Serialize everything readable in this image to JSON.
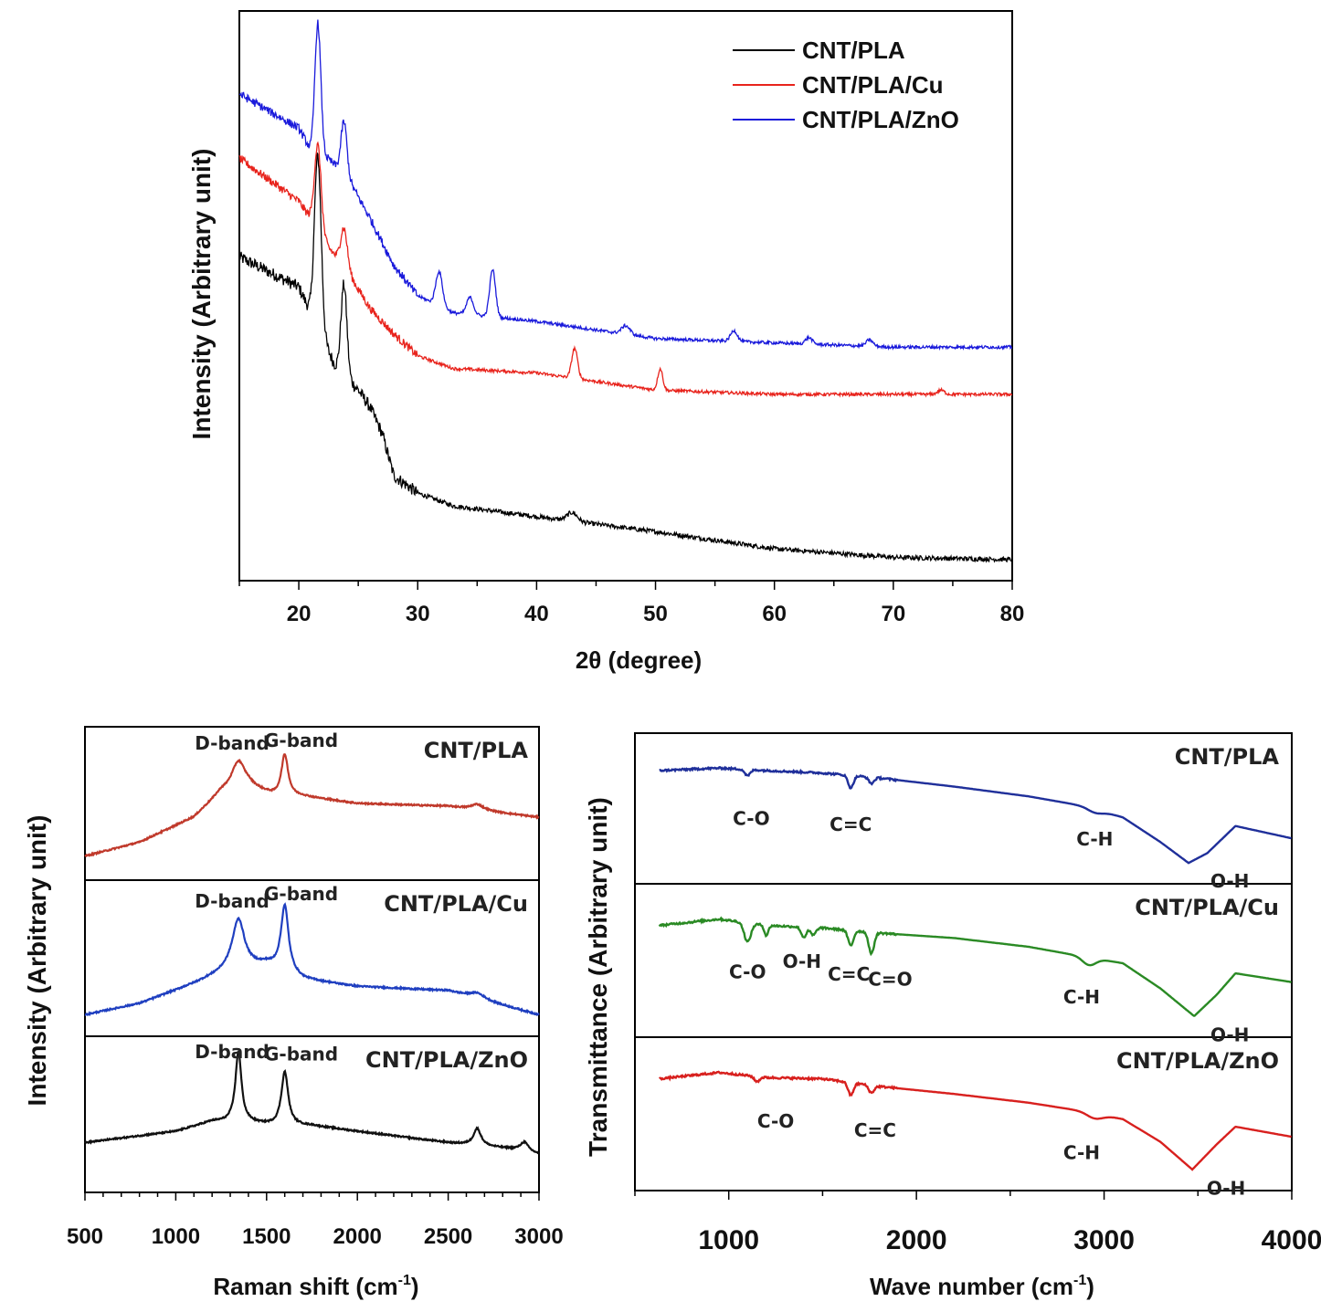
{
  "chart_data": [
    {
      "type": "line",
      "xlabel": "2θ (degree)",
      "ylabel": "Intensity (Arbitrary unit)",
      "xlim": [
        15,
        80
      ],
      "x_ticks": [
        "20",
        "30",
        "40",
        "50",
        "60",
        "70",
        "80"
      ],
      "legend_position": "top-right",
      "series": [
        {
          "name": "CNT/PLA",
          "color": "#000000",
          "baseline": [
            [
              15,
              0.75
            ],
            [
              20,
              0.68
            ],
            [
              21,
              0.62
            ],
            [
              23,
              0.5
            ],
            [
              25,
              0.44
            ],
            [
              26,
              0.4
            ],
            [
              27,
              0.34
            ],
            [
              28,
              0.24
            ],
            [
              30,
              0.2
            ],
            [
              33,
              0.17
            ],
            [
              40,
              0.145
            ],
            [
              50,
              0.11
            ],
            [
              60,
              0.07
            ],
            [
              70,
              0.05
            ],
            [
              80,
              0.045
            ]
          ],
          "peaks": [
            [
              21.6,
              0.4,
              0.4
            ],
            [
              23.8,
              0.21,
              0.35
            ],
            [
              43,
              0.02,
              0.6
            ]
          ]
        },
        {
          "name": "CNT/PLA/Cu",
          "color": "#e8231c",
          "baseline": [
            [
              15,
              0.98
            ],
            [
              20,
              0.88
            ],
            [
              21,
              0.84
            ],
            [
              22,
              0.79
            ],
            [
              24,
              0.72
            ],
            [
              26,
              0.63
            ],
            [
              28,
              0.57
            ],
            [
              30,
              0.52
            ],
            [
              33,
              0.49
            ],
            [
              40,
              0.48
            ],
            [
              50,
              0.44
            ],
            [
              60,
              0.43
            ],
            [
              70,
              0.43
            ],
            [
              80,
              0.43
            ]
          ],
          "peaks": [
            [
              21.6,
              0.2,
              0.4
            ],
            [
              23.8,
              0.09,
              0.4
            ],
            [
              43.2,
              0.07,
              0.35
            ],
            [
              50.4,
              0.05,
              0.3
            ],
            [
              74,
              0.01,
              0.4
            ]
          ]
        },
        {
          "name": "CNT/PLA/ZnO",
          "color": "#1a1adb",
          "baseline": [
            [
              15,
              1.13
            ],
            [
              20,
              1.05
            ],
            [
              21,
              1.0
            ],
            [
              22,
              0.99
            ],
            [
              24,
              0.94
            ],
            [
              26,
              0.84
            ],
            [
              28,
              0.73
            ],
            [
              30,
              0.66
            ],
            [
              33,
              0.62
            ],
            [
              40,
              0.6
            ],
            [
              50,
              0.56
            ],
            [
              60,
              0.55
            ],
            [
              70,
              0.54
            ],
            [
              80,
              0.54
            ]
          ],
          "peaks": [
            [
              21.6,
              0.3,
              0.35
            ],
            [
              23.8,
              0.12,
              0.35
            ],
            [
              31.8,
              0.08,
              0.4
            ],
            [
              34.4,
              0.04,
              0.4
            ],
            [
              36.3,
              0.11,
              0.35
            ],
            [
              47.5,
              0.02,
              0.5
            ],
            [
              56.6,
              0.025,
              0.4
            ],
            [
              62.9,
              0.015,
              0.4
            ],
            [
              68,
              0.015,
              0.4
            ]
          ]
        }
      ]
    },
    {
      "type": "line",
      "xlabel": "Raman shift (cm-1)",
      "xlabel_main": "Raman shift (cm",
      "xlabel_sup": "-1",
      "xlabel_end": ")",
      "ylabel": "Intensity (Arbitrary unit)",
      "xlim": [
        500,
        3000
      ],
      "x_ticks": [
        "500",
        "1000",
        "1500",
        "2000",
        "2500",
        "3000"
      ],
      "panels": [
        {
          "name": "CNT/PLA",
          "color": "#c0392b",
          "d_label": "D-band",
          "g_label": "G-band",
          "baseline": [
            [
              500,
              0.12
            ],
            [
              800,
              0.22
            ],
            [
              1100,
              0.4
            ],
            [
              1250,
              0.58
            ],
            [
              1400,
              0.62
            ],
            [
              1550,
              0.55
            ],
            [
              1700,
              0.55
            ],
            [
              2000,
              0.5
            ],
            [
              2500,
              0.48
            ],
            [
              3000,
              0.4
            ]
          ],
          "peaks": [
            [
              1345,
              0.2,
              90
            ],
            [
              1600,
              0.3,
              45
            ],
            [
              2660,
              0.04,
              80
            ]
          ]
        },
        {
          "name": "CNT/PLA/Cu",
          "color": "#1f3fc0",
          "d_label": "D-band",
          "g_label": "G-band",
          "baseline": [
            [
              500,
              0.1
            ],
            [
              800,
              0.18
            ],
            [
              1100,
              0.32
            ],
            [
              1300,
              0.42
            ],
            [
              1500,
              0.45
            ],
            [
              1700,
              0.35
            ],
            [
              2000,
              0.3
            ],
            [
              2500,
              0.27
            ],
            [
              3000,
              0.1
            ]
          ],
          "peaks": [
            [
              1345,
              0.35,
              80
            ],
            [
              1600,
              0.47,
              50
            ],
            [
              2660,
              0.04,
              100
            ]
          ]
        },
        {
          "name": "CNT/PLA/ZnO",
          "color": "#111111",
          "d_label": "D-band",
          "g_label": "G-band",
          "baseline": [
            [
              500,
              0.3
            ],
            [
              1000,
              0.38
            ],
            [
              1200,
              0.45
            ],
            [
              1400,
              0.44
            ],
            [
              1550,
              0.42
            ],
            [
              1750,
              0.42
            ],
            [
              2000,
              0.38
            ],
            [
              2500,
              0.3
            ],
            [
              2900,
              0.25
            ],
            [
              3000,
              0.22
            ]
          ],
          "peaks": [
            [
              1345,
              0.5,
              40
            ],
            [
              1600,
              0.38,
              45
            ],
            [
              2660,
              0.12,
              50
            ],
            [
              2920,
              0.06,
              50
            ]
          ]
        }
      ]
    },
    {
      "type": "line",
      "xlabel": "Wave number (cm-1)",
      "xlabel_main": "Wave number (cm",
      "xlabel_sup": "-1",
      "xlabel_end": ")",
      "ylabel": "Transmittance (Arbitrary unit)",
      "xlim": [
        500,
        4000
      ],
      "x_ticks": [
        "1000",
        "2000",
        "3000",
        "4000"
      ],
      "panels": [
        {
          "name": "CNT/PLA",
          "color": "#1f2f9a",
          "labels": [
            "C-O",
            "C=C",
            "C-H",
            "O-H"
          ],
          "baseline": [
            [
              630,
              0.83
            ],
            [
              950,
              0.85
            ],
            [
              1200,
              0.83
            ],
            [
              1500,
              0.81
            ],
            [
              1800,
              0.77
            ],
            [
              2200,
              0.7
            ],
            [
              2600,
              0.62
            ],
            [
              2900,
              0.54
            ],
            [
              3100,
              0.45
            ],
            [
              3300,
              0.25
            ],
            [
              3450,
              0.08
            ],
            [
              3550,
              0.16
            ],
            [
              3700,
              0.38
            ],
            [
              4000,
              0.28
            ]
          ],
          "dips": [
            [
              1100,
              0.05,
              20
            ],
            [
              1650,
              0.1,
              20
            ],
            [
              1760,
              0.05,
              20
            ],
            [
              2950,
              0.03,
              60
            ]
          ]
        },
        {
          "name": "CNT/PLA/Cu",
          "color": "#2a8a24",
          "labels": [
            "C-O",
            "O-H",
            "C=C",
            "C=O",
            "C-H",
            "O-H"
          ],
          "baseline": [
            [
              630,
              0.8
            ],
            [
              950,
              0.85
            ],
            [
              1200,
              0.8
            ],
            [
              1500,
              0.78
            ],
            [
              1800,
              0.74
            ],
            [
              2200,
              0.7
            ],
            [
              2600,
              0.63
            ],
            [
              2900,
              0.55
            ],
            [
              3100,
              0.5
            ],
            [
              3300,
              0.3
            ],
            [
              3480,
              0.08
            ],
            [
              3600,
              0.25
            ],
            [
              3700,
              0.42
            ],
            [
              4000,
              0.35
            ]
          ],
          "dips": [
            [
              1100,
              0.15,
              25
            ],
            [
              1200,
              0.08,
              15
            ],
            [
              1400,
              0.08,
              20
            ],
            [
              1450,
              0.06,
              20
            ],
            [
              1650,
              0.12,
              20
            ],
            [
              1760,
              0.17,
              20
            ],
            [
              2920,
              0.06,
              50
            ]
          ]
        },
        {
          "name": "CNT/PLA/ZnO",
          "color": "#d8201e",
          "labels": [
            "C-O",
            "C=C",
            "C-H",
            "O-H"
          ],
          "baseline": [
            [
              630,
              0.8
            ],
            [
              950,
              0.85
            ],
            [
              1200,
              0.81
            ],
            [
              1500,
              0.8
            ],
            [
              1800,
              0.74
            ],
            [
              2200,
              0.68
            ],
            [
              2600,
              0.61
            ],
            [
              2900,
              0.54
            ],
            [
              3100,
              0.48
            ],
            [
              3300,
              0.3
            ],
            [
              3470,
              0.08
            ],
            [
              3600,
              0.28
            ],
            [
              3700,
              0.42
            ],
            [
              4000,
              0.34
            ]
          ],
          "dips": [
            [
              1150,
              0.04,
              20
            ],
            [
              1650,
              0.1,
              20
            ],
            [
              1760,
              0.06,
              20
            ],
            [
              2950,
              0.04,
              60
            ]
          ]
        }
      ]
    }
  ]
}
